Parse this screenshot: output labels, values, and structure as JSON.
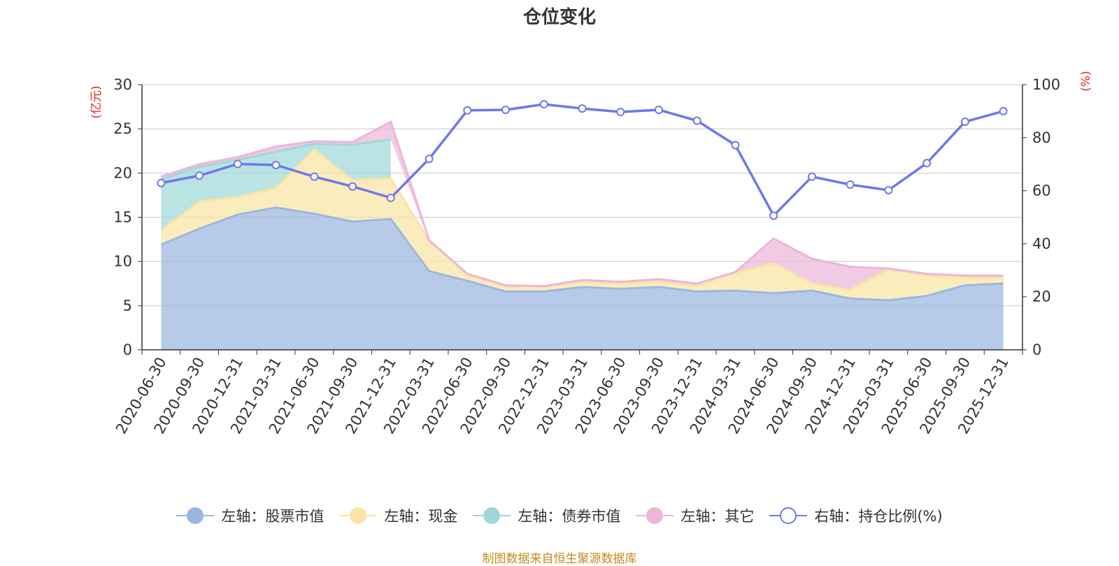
{
  "chart_data": {
    "type": "area",
    "title": "仓位变化",
    "categories": [
      "2020-06-30",
      "2020-09-30",
      "2020-12-31",
      "2021-03-31",
      "2021-06-30",
      "2021-09-30",
      "2021-12-31",
      "2022-03-31",
      "2022-06-30",
      "2022-09-30",
      "2022-12-31",
      "2023-03-31",
      "2023-06-30",
      "2023-09-30",
      "2023-12-31",
      "2024-03-31",
      "2024-06-30",
      "2024-09-30",
      "2024-12-31",
      "2025-03-31",
      "2025-06-30",
      "2025-09-30",
      "2025-12-31"
    ],
    "left_axis": {
      "unit": "(亿元)",
      "ylim": [
        0,
        30
      ],
      "ticks": [
        0,
        5,
        10,
        15,
        20,
        25,
        30
      ]
    },
    "right_axis": {
      "unit": "(%)",
      "ylim": [
        0,
        100
      ],
      "ticks": [
        0,
        20,
        40,
        60,
        80,
        100
      ]
    },
    "stacked": true,
    "series": [
      {
        "name": "左轴：股票市值",
        "axis": "left",
        "color": "#9bb7e0",
        "values": [
          11.9,
          13.7,
          15.3,
          16.1,
          15.4,
          14.5,
          14.8,
          8.9,
          7.8,
          6.6,
          6.6,
          7.1,
          6.9,
          7.1,
          6.6,
          6.7,
          6.4,
          6.7,
          5.8,
          5.6,
          6.1,
          7.3,
          7.5
        ]
      },
      {
        "name": "左轴：现金",
        "axis": "left",
        "color": "#f9e4a4",
        "values": [
          1.6,
          3.1,
          2.0,
          2.2,
          7.3,
          4.7,
          4.6,
          3.4,
          0.7,
          0.5,
          0.5,
          0.6,
          0.6,
          0.6,
          0.6,
          2.0,
          3.4,
          0.8,
          1.0,
          3.5,
          2.3,
          0.9,
          0.7
        ]
      },
      {
        "name": "左轴：债券市值",
        "axis": "left",
        "color": "#9fd8d8",
        "values": [
          5.8,
          3.9,
          4.2,
          4.1,
          0.6,
          4.0,
          4.4,
          0,
          0,
          0,
          0,
          0,
          0,
          0,
          0,
          0,
          0,
          0,
          0,
          0,
          0,
          0,
          0
        ]
      },
      {
        "name": "左轴：其它",
        "axis": "left",
        "color": "#ecb7d9",
        "values": [
          0.3,
          0.3,
          0.3,
          0.6,
          0.3,
          0.3,
          2.0,
          0.1,
          0.1,
          0.2,
          0.1,
          0.2,
          0.2,
          0.3,
          0.3,
          0.1,
          2.8,
          2.8,
          2.6,
          0.1,
          0.2,
          0.2,
          0.2
        ]
      },
      {
        "name": "右轴：持仓比例(%)",
        "axis": "right",
        "color": "#7077ec",
        "type": "line",
        "values": [
          62.9,
          65.7,
          70.1,
          69.7,
          65.3,
          61.6,
          57.3,
          72.0,
          90.3,
          90.5,
          92.6,
          91.0,
          89.7,
          90.5,
          86.4,
          77.2,
          50.6,
          65.3,
          62.3,
          60.2,
          70.4,
          86.0,
          90.0
        ]
      }
    ],
    "grid": true,
    "legend_position": "bottom"
  },
  "source": "制图数据来自恒生聚源数据库"
}
